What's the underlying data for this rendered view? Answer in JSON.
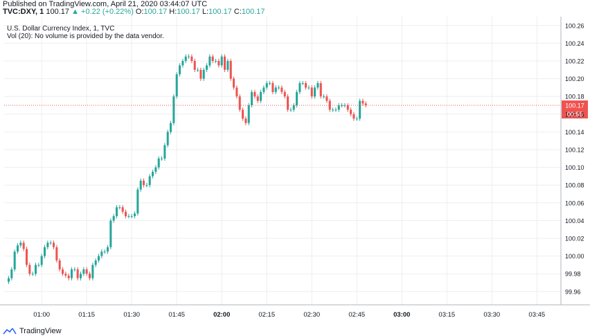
{
  "header": {
    "published": "Published on TradingView.com, April 21, 2020 03:44:07 UTC",
    "symbol": "TVC:DXY, 1",
    "last": "100.17",
    "change": "▲ +0.22 (+0.22%)",
    "o_label": "O:",
    "o_value": "100.17",
    "h_label": "H:",
    "h_value": "100.17",
    "l_label": "L:",
    "l_value": "100.17",
    "c_label": "C:",
    "c_value": "100.17"
  },
  "legend": {
    "title": "U.S. Dollar Currency Index, 1, TVC",
    "volume_note": "Vol (20): No volume is provided by the data vendor."
  },
  "footer": {
    "brand": "TradingView",
    "brand_icon": "tradingview-logo-icon"
  },
  "colors": {
    "up": "#26a69a",
    "down": "#ef5350",
    "price_line": "#ef5350",
    "grid": "#eeeeee"
  },
  "chart_data": {
    "type": "candlestick",
    "title": "U.S. Dollar Currency Index, 1, TVC",
    "xlabel": "",
    "ylabel": "",
    "ylim": [
      99.945,
      100.27
    ],
    "y_ticks": [
      99.96,
      99.98,
      100.0,
      100.02,
      100.04,
      100.06,
      100.08,
      100.1,
      100.12,
      100.14,
      100.16,
      100.18,
      100.2,
      100.22,
      100.24,
      100.26
    ],
    "x_tick_labels": [
      "01:00",
      "01:15",
      "01:30",
      "01:45",
      "02:00",
      "02:15",
      "02:30",
      "02:45",
      "03:00",
      "03:15",
      "03:30",
      "03:45"
    ],
    "x_tick_bold": [
      false,
      false,
      false,
      false,
      true,
      false,
      false,
      false,
      true,
      false,
      false,
      false
    ],
    "x_tick_minutes": [
      60,
      75,
      90,
      105,
      120,
      135,
      150,
      165,
      180,
      195,
      210,
      225
    ],
    "x_range_minutes": [
      47.5,
      233
    ],
    "last_price": "100.17",
    "countdown": "00:55",
    "candles_start_minute": 49,
    "closes": [
      99.975,
      99.985,
      100.005,
      100.012,
      100.015,
      100.008,
      99.99,
      99.98,
      99.98,
      99.99,
      99.99,
      100.0,
      100.01,
      100.015,
      100.015,
      100.01,
      99.995,
      99.985,
      99.98,
      99.978,
      99.975,
      99.985,
      99.985,
      99.975,
      99.98,
      99.985,
      99.98,
      99.975,
      99.99,
      99.995,
      100.0,
      100.005,
      100.005,
      100.01,
      100.04,
      100.045,
      100.055,
      100.055,
      100.05,
      100.045,
      100.045,
      100.045,
      100.048,
      100.075,
      100.085,
      100.08,
      100.08,
      100.09,
      100.095,
      100.1,
      100.11,
      100.11,
      100.125,
      100.14,
      100.15,
      100.18,
      100.205,
      100.215,
      100.22,
      100.225,
      100.225,
      100.22,
      100.21,
      100.21,
      100.2,
      100.21,
      100.215,
      100.225,
      100.22,
      100.22,
      100.215,
      100.225,
      100.21,
      100.22,
      100.2,
      100.19,
      100.18,
      100.165,
      100.155,
      100.15,
      100.17,
      100.185,
      100.18,
      100.175,
      100.185,
      100.19,
      100.195,
      100.195,
      100.185,
      100.19,
      100.19,
      100.185,
      100.18,
      100.165,
      100.165,
      100.17,
      100.185,
      100.195,
      100.195,
      100.19,
      100.19,
      100.18,
      100.19,
      100.195,
      100.18,
      100.18,
      100.175,
      100.165,
      100.165,
      100.165,
      100.17,
      100.17,
      100.17,
      100.165,
      100.16,
      100.155,
      100.155,
      100.175,
      100.172,
      100.17
    ]
  }
}
